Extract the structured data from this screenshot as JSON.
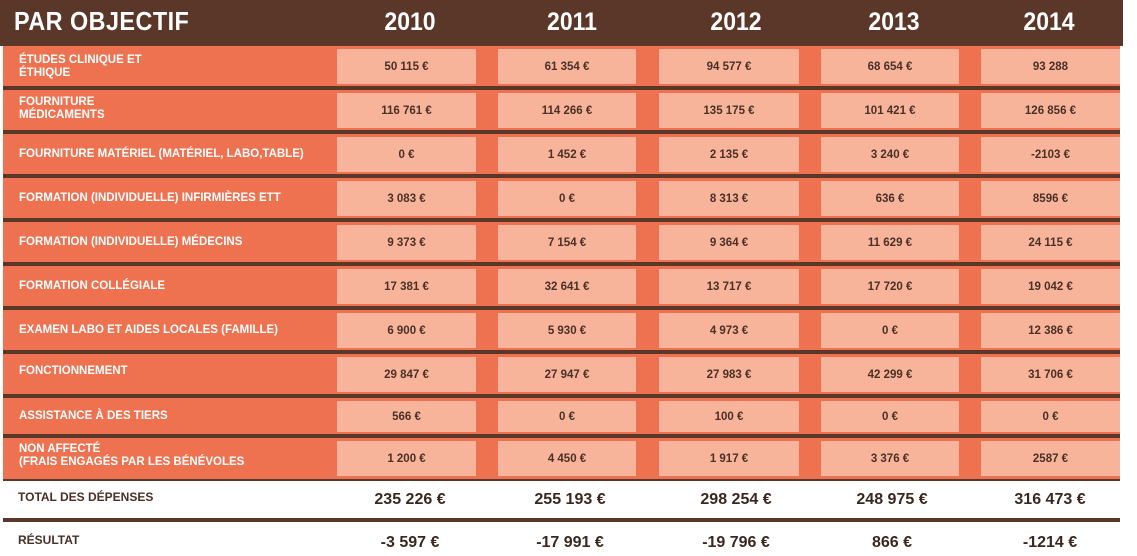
{
  "header": {
    "title": "PAR OBJECTIF",
    "years": [
      "2010",
      "2011",
      "2012",
      "2013",
      "2014"
    ]
  },
  "rows": [
    {
      "label": [
        "ÉTUDES CLINIQUE ET",
        "ÉTHIQUE"
      ],
      "values": [
        "50 115 €",
        "61 354 €",
        "94 577 €",
        "68 654 €",
        "93 288"
      ]
    },
    {
      "label": [
        "FOURNITURE",
        "MÉDICAMENTS"
      ],
      "values": [
        "116 761 €",
        "114 266 €",
        "135 175 €",
        "101 421 €",
        "126 856 €"
      ]
    },
    {
      "label": [
        "FOURNITURE MATÉRIEL (MATÉRIEL, LABO,TABLE)"
      ],
      "values": [
        "0 €",
        "1 452 €",
        "2 135 €",
        "3 240 €",
        "-2103 €"
      ]
    },
    {
      "label": [
        "FORMATION (INDIVIDUELLE) INFIRMIÈRES ETT"
      ],
      "values": [
        "3 083 €",
        "0 €",
        "8 313 €",
        "636 €",
        "8596 €"
      ]
    },
    {
      "label": [
        "FORMATION (INDIVIDUELLE) MÉDECINS"
      ],
      "values": [
        "9 373 €",
        "7 154 €",
        "9 364 €",
        "11 629 €",
        "24 115 €"
      ]
    },
    {
      "label": [
        "FORMATION COLLÉGIALE"
      ],
      "values": [
        "17 381 €",
        "32 641 €",
        "13 717 €",
        "17 720 €",
        "19 042 €"
      ]
    },
    {
      "label": [
        "EXAMEN LABO ET AIDES LOCALES (FAMILLE)"
      ],
      "values": [
        "6 900 €",
        "5 930 €",
        "4 973 €",
        "0 €",
        "12 386 €"
      ]
    },
    {
      "label": [
        "FONCTIONNEMENT"
      ],
      "values": [
        "29 847 €",
        "27 947 €",
        "27 983 €",
        "42 299 €",
        "31 706 €"
      ]
    },
    {
      "label": [
        "ASSISTANCE À DES TIERS"
      ],
      "values": [
        "566 €",
        "0 €",
        "100 €",
        "0 €",
        "0 €"
      ]
    },
    {
      "label": [
        "NON AFFECTÉ",
        "(FRAIS ENGAGÉS PAR LES BÉNÉVOLES"
      ],
      "values": [
        "1 200 €",
        "4 450 €",
        "1 917 €",
        "3 376 €",
        "2587 €"
      ]
    }
  ],
  "total": {
    "label": "TOTAL DES DÉPENSES",
    "values": [
      "235 226 €",
      "255 193 €",
      "298 254 €",
      "248 975 €",
      "316 473 €"
    ]
  },
  "result": {
    "label": "RÉSULTAT",
    "values": [
      "-3 597 €",
      "-17 991 €",
      "-19 796 €",
      "866 €",
      "-1214 €"
    ]
  },
  "colors": {
    "header_bg": "#5a3728",
    "label_bg": "#ee7150",
    "cell_bg": "#f7b49a",
    "text_dark": "#4a3026"
  }
}
